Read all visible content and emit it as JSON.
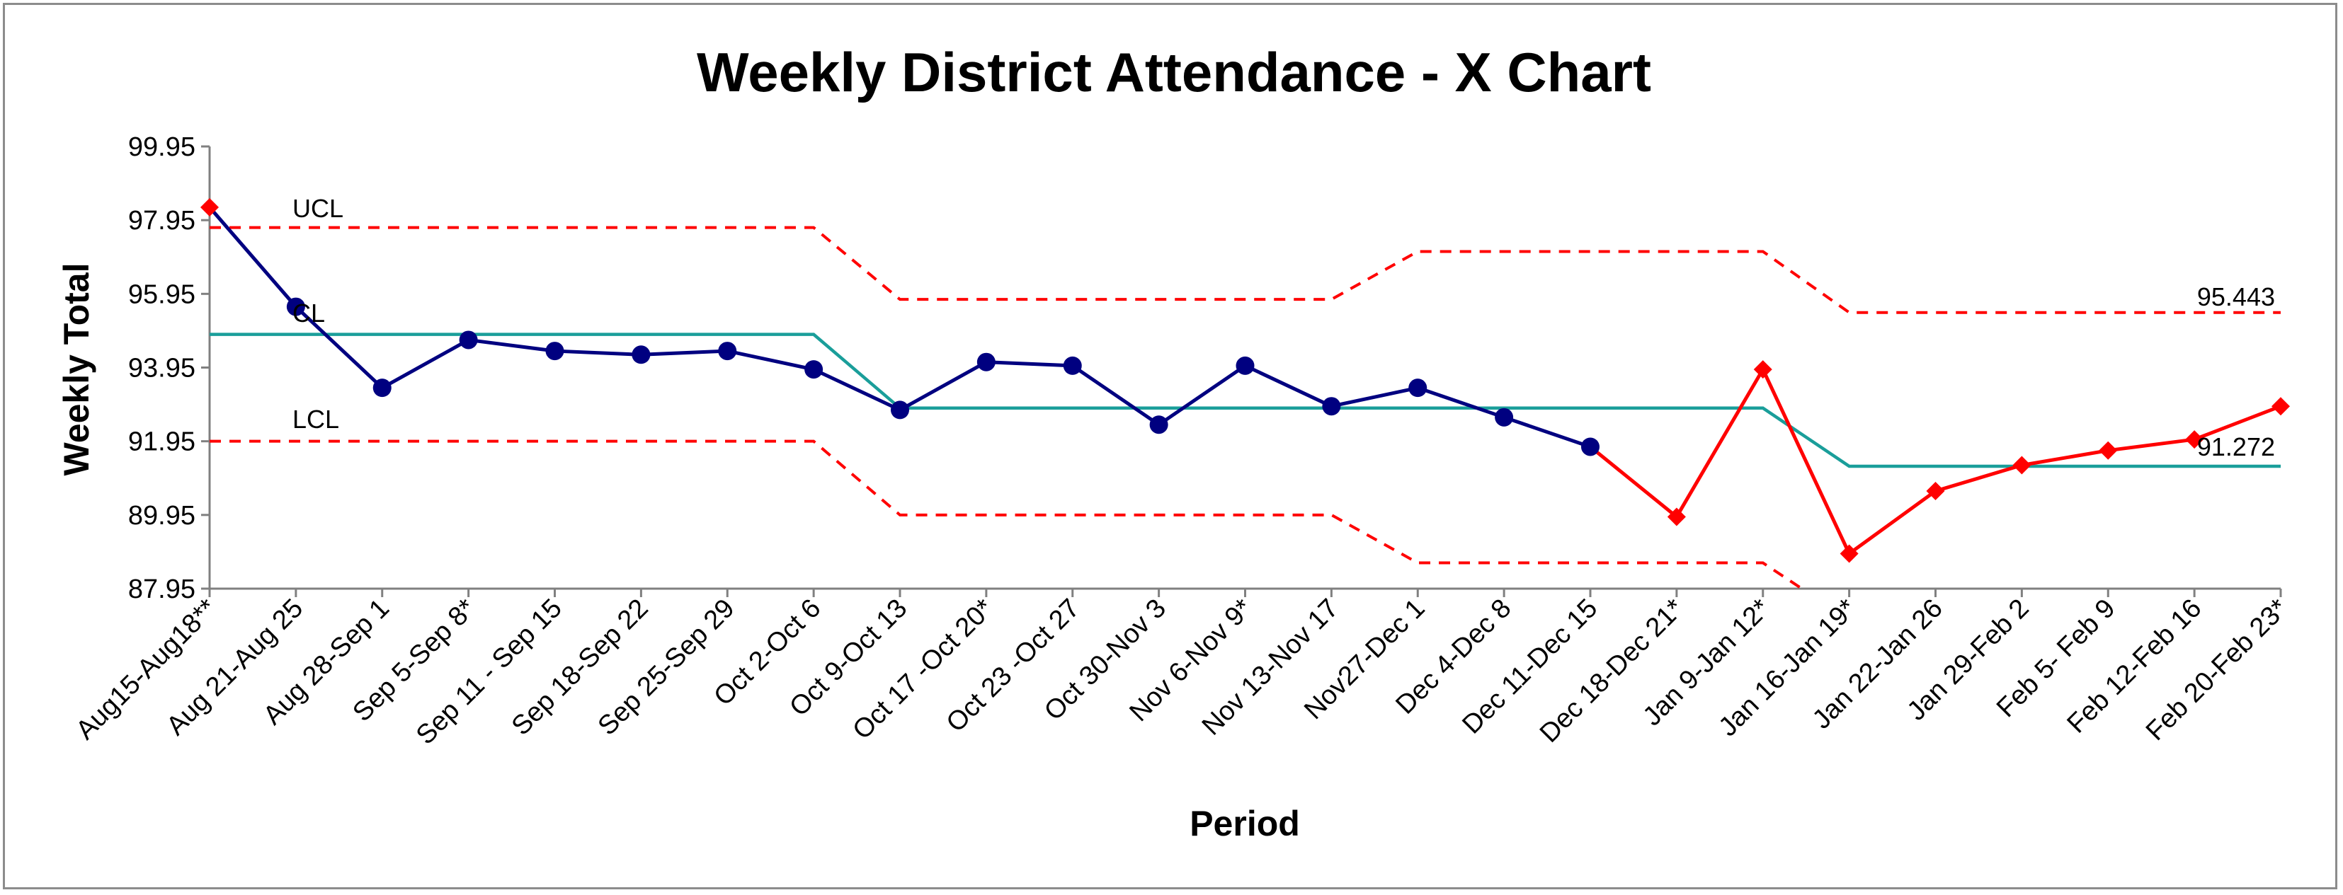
{
  "chart_data": {
    "type": "line",
    "title": "Weekly District Attendance - X Chart",
    "xlabel": "Period",
    "ylabel": "Weekly Total",
    "ylim": [
      87.95,
      99.95
    ],
    "yticks": [
      "99.95",
      "97.95",
      "95.95",
      "93.95",
      "91.95",
      "89.95",
      "87.95"
    ],
    "categories": [
      "Aug15-Aug18**",
      "Aug 21-Aug 25",
      "Aug 28-Sep 1",
      "Sep 5-Sep 8*",
      "Sep 11 - Sep 15",
      "Sep 18-Sep 22",
      "Sep 25-Sep 29",
      "Oct 2-Oct 6",
      "Oct 9-Oct 13",
      "Oct 17 -Oct 20*",
      "Oct 23 -Oct 27",
      "Oct 30-Nov 3",
      "Nov 6-Nov 9*",
      "Nov 13-Nov 17",
      "Nov27-Dec 1",
      "Dec 4-Dec 8",
      "Dec 11-Dec 15",
      "Dec 18-Dec 21*",
      "Jan 9-Jan 12*",
      "Jan 16-Jan 19*",
      "Jan 22-Jan 26",
      "Jan 29-Feb 2",
      "Feb 5- Feb 9",
      "Feb 12-Feb 16",
      "Feb 20-Feb 23*"
    ],
    "series": [
      {
        "values": [
          98.3,
          95.6,
          93.4,
          94.7,
          94.4,
          94.3,
          94.4,
          93.9,
          92.8,
          94.1,
          94.0,
          92.4,
          94.0,
          92.9,
          93.4,
          92.6,
          91.8,
          89.9,
          93.9,
          88.9,
          90.6,
          91.3,
          91.7,
          92.0,
          92.9
        ],
        "signal": [
          true,
          false,
          false,
          false,
          false,
          false,
          false,
          false,
          false,
          false,
          false,
          false,
          false,
          false,
          false,
          false,
          false,
          true,
          true,
          true,
          true,
          true,
          true,
          true,
          true
        ],
        "color": "#000080",
        "signal_color": "#ff0000"
      },
      {
        "name": "UCL",
        "values": [
          97.75,
          97.75,
          97.75,
          97.75,
          97.75,
          97.75,
          97.75,
          97.75,
          95.8,
          95.8,
          95.8,
          95.8,
          95.8,
          95.8,
          97.1,
          97.1,
          97.1,
          97.1,
          97.1,
          95.443,
          95.443,
          95.443,
          95.443,
          95.443,
          95.443
        ],
        "color": "#ff0000",
        "style": "dashed"
      },
      {
        "name": "CL",
        "values": [
          94.85,
          94.85,
          94.85,
          94.85,
          94.85,
          94.85,
          94.85,
          94.85,
          92.85,
          92.85,
          92.85,
          92.85,
          92.85,
          92.85,
          92.85,
          92.85,
          92.85,
          92.85,
          92.85,
          91.272,
          91.272,
          91.272,
          91.272,
          91.272,
          91.272
        ],
        "color": "#1a9e9a",
        "style": "solid"
      },
      {
        "name": "LCL",
        "values": [
          91.95,
          91.95,
          91.95,
          91.95,
          91.95,
          91.95,
          91.95,
          91.95,
          89.95,
          89.95,
          89.95,
          89.95,
          89.95,
          89.95,
          88.65,
          88.65,
          88.65,
          88.65,
          88.65,
          87.1,
          87.1,
          87.1,
          87.1,
          87.1,
          87.1
        ],
        "color": "#ff0000",
        "style": "dashed"
      }
    ],
    "line_labels": {
      "ucl": "UCL",
      "cl": "CL",
      "lcl": "LCL",
      "ucl_value": "95.443",
      "cl_value": "91.272"
    },
    "grid": false,
    "legend": "none"
  }
}
